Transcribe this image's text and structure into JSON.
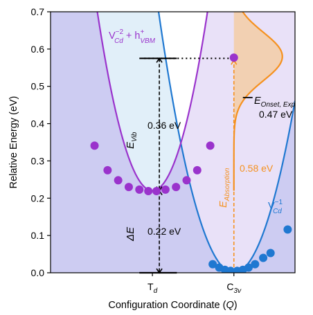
{
  "chart_data": {
    "type": "scatter",
    "xlabel": "Configuration Coordinate (Q)",
    "ylabel": "Relative Energy (eV)",
    "ylim": [
      0,
      0.7
    ],
    "yticks": [
      "0.0",
      "0.1",
      "0.2",
      "0.3",
      "0.4",
      "0.5",
      "0.6",
      "0.7"
    ],
    "xticks": [
      {
        "label": "T",
        "sub": "d",
        "q": 0
      },
      {
        "label": "C",
        "sub": "3v",
        "q": 1
      }
    ],
    "xlim": [
      -1.25,
      1.75
    ],
    "series": [
      {
        "name": "V_Cd^-2 + h+_VBM",
        "color": "#9a33cc",
        "fill": "#d7c8f2",
        "curve": {
          "q0": 0,
          "e0": 0.22,
          "k": 1.05
        },
        "points": [
          {
            "q": -0.71,
            "e": 0.341
          },
          {
            "q": -0.55,
            "e": 0.275
          },
          {
            "q": -0.42,
            "e": 0.248
          },
          {
            "q": -0.29,
            "e": 0.23
          },
          {
            "q": -0.16,
            "e": 0.223
          },
          {
            "q": -0.05,
            "e": 0.219
          },
          {
            "q": 0.05,
            "e": 0.219
          },
          {
            "q": 0.16,
            "e": 0.223
          },
          {
            "q": 0.29,
            "e": 0.23
          },
          {
            "q": 0.42,
            "e": 0.248
          },
          {
            "q": 0.55,
            "e": 0.275
          },
          {
            "q": 0.71,
            "e": 0.341
          },
          {
            "q": 1.0,
            "e": 0.577
          }
        ]
      },
      {
        "name": "V_Cd^-1",
        "color": "#1f78d1",
        "fill": "#dcecf8",
        "curve": {
          "q0": 1,
          "e0": 0.0,
          "k": 0.82
        },
        "points": [
          {
            "q": 0.74,
            "e": 0.023
          },
          {
            "q": 0.82,
            "e": 0.014
          },
          {
            "q": 0.89,
            "e": 0.008
          },
          {
            "q": 0.96,
            "e": 0.005
          },
          {
            "q": 1.04,
            "e": 0.005
          },
          {
            "q": 1.11,
            "e": 0.008
          },
          {
            "q": 1.18,
            "e": 0.014
          },
          {
            "q": 1.26,
            "e": 0.023
          },
          {
            "q": 1.36,
            "e": 0.04
          },
          {
            "q": 1.45,
            "e": 0.053
          },
          {
            "q": 1.66,
            "e": 0.116
          }
        ]
      }
    ],
    "absorption_peak": {
      "center": 0.58,
      "sigma": 0.065,
      "color": "#f5911f",
      "fill": "#f2cfae"
    },
    "labels": {
      "upper_curve": {
        "main": "V",
        "sub": "Cd",
        "sup": "−2",
        "rest": " + h",
        "rest_sub": "VBM",
        "rest_sup": "+"
      },
      "lower_curve": {
        "main": "V",
        "sub": "Cd",
        "sup": "−1"
      },
      "e_vib": {
        "main": "E",
        "sub": "Vib"
      },
      "e_vib_value": "0.36 eV",
      "delta_e": "ΔE",
      "delta_e_value": "0.22 eV",
      "e_abs": {
        "main": "E",
        "sub": "Absorption"
      },
      "e_abs_value": "0.58 eV",
      "e_onset": {
        "main": "E",
        "sub": "Onset, Exp"
      },
      "e_onset_value": "0.47 eV"
    },
    "annotations": {
      "vib_top": 0.575,
      "vib_bottom": 0.22,
      "delta_top": 0.22,
      "delta_bottom": 0.0,
      "abs_top": 0.577,
      "onset_energy": 0.47
    }
  }
}
